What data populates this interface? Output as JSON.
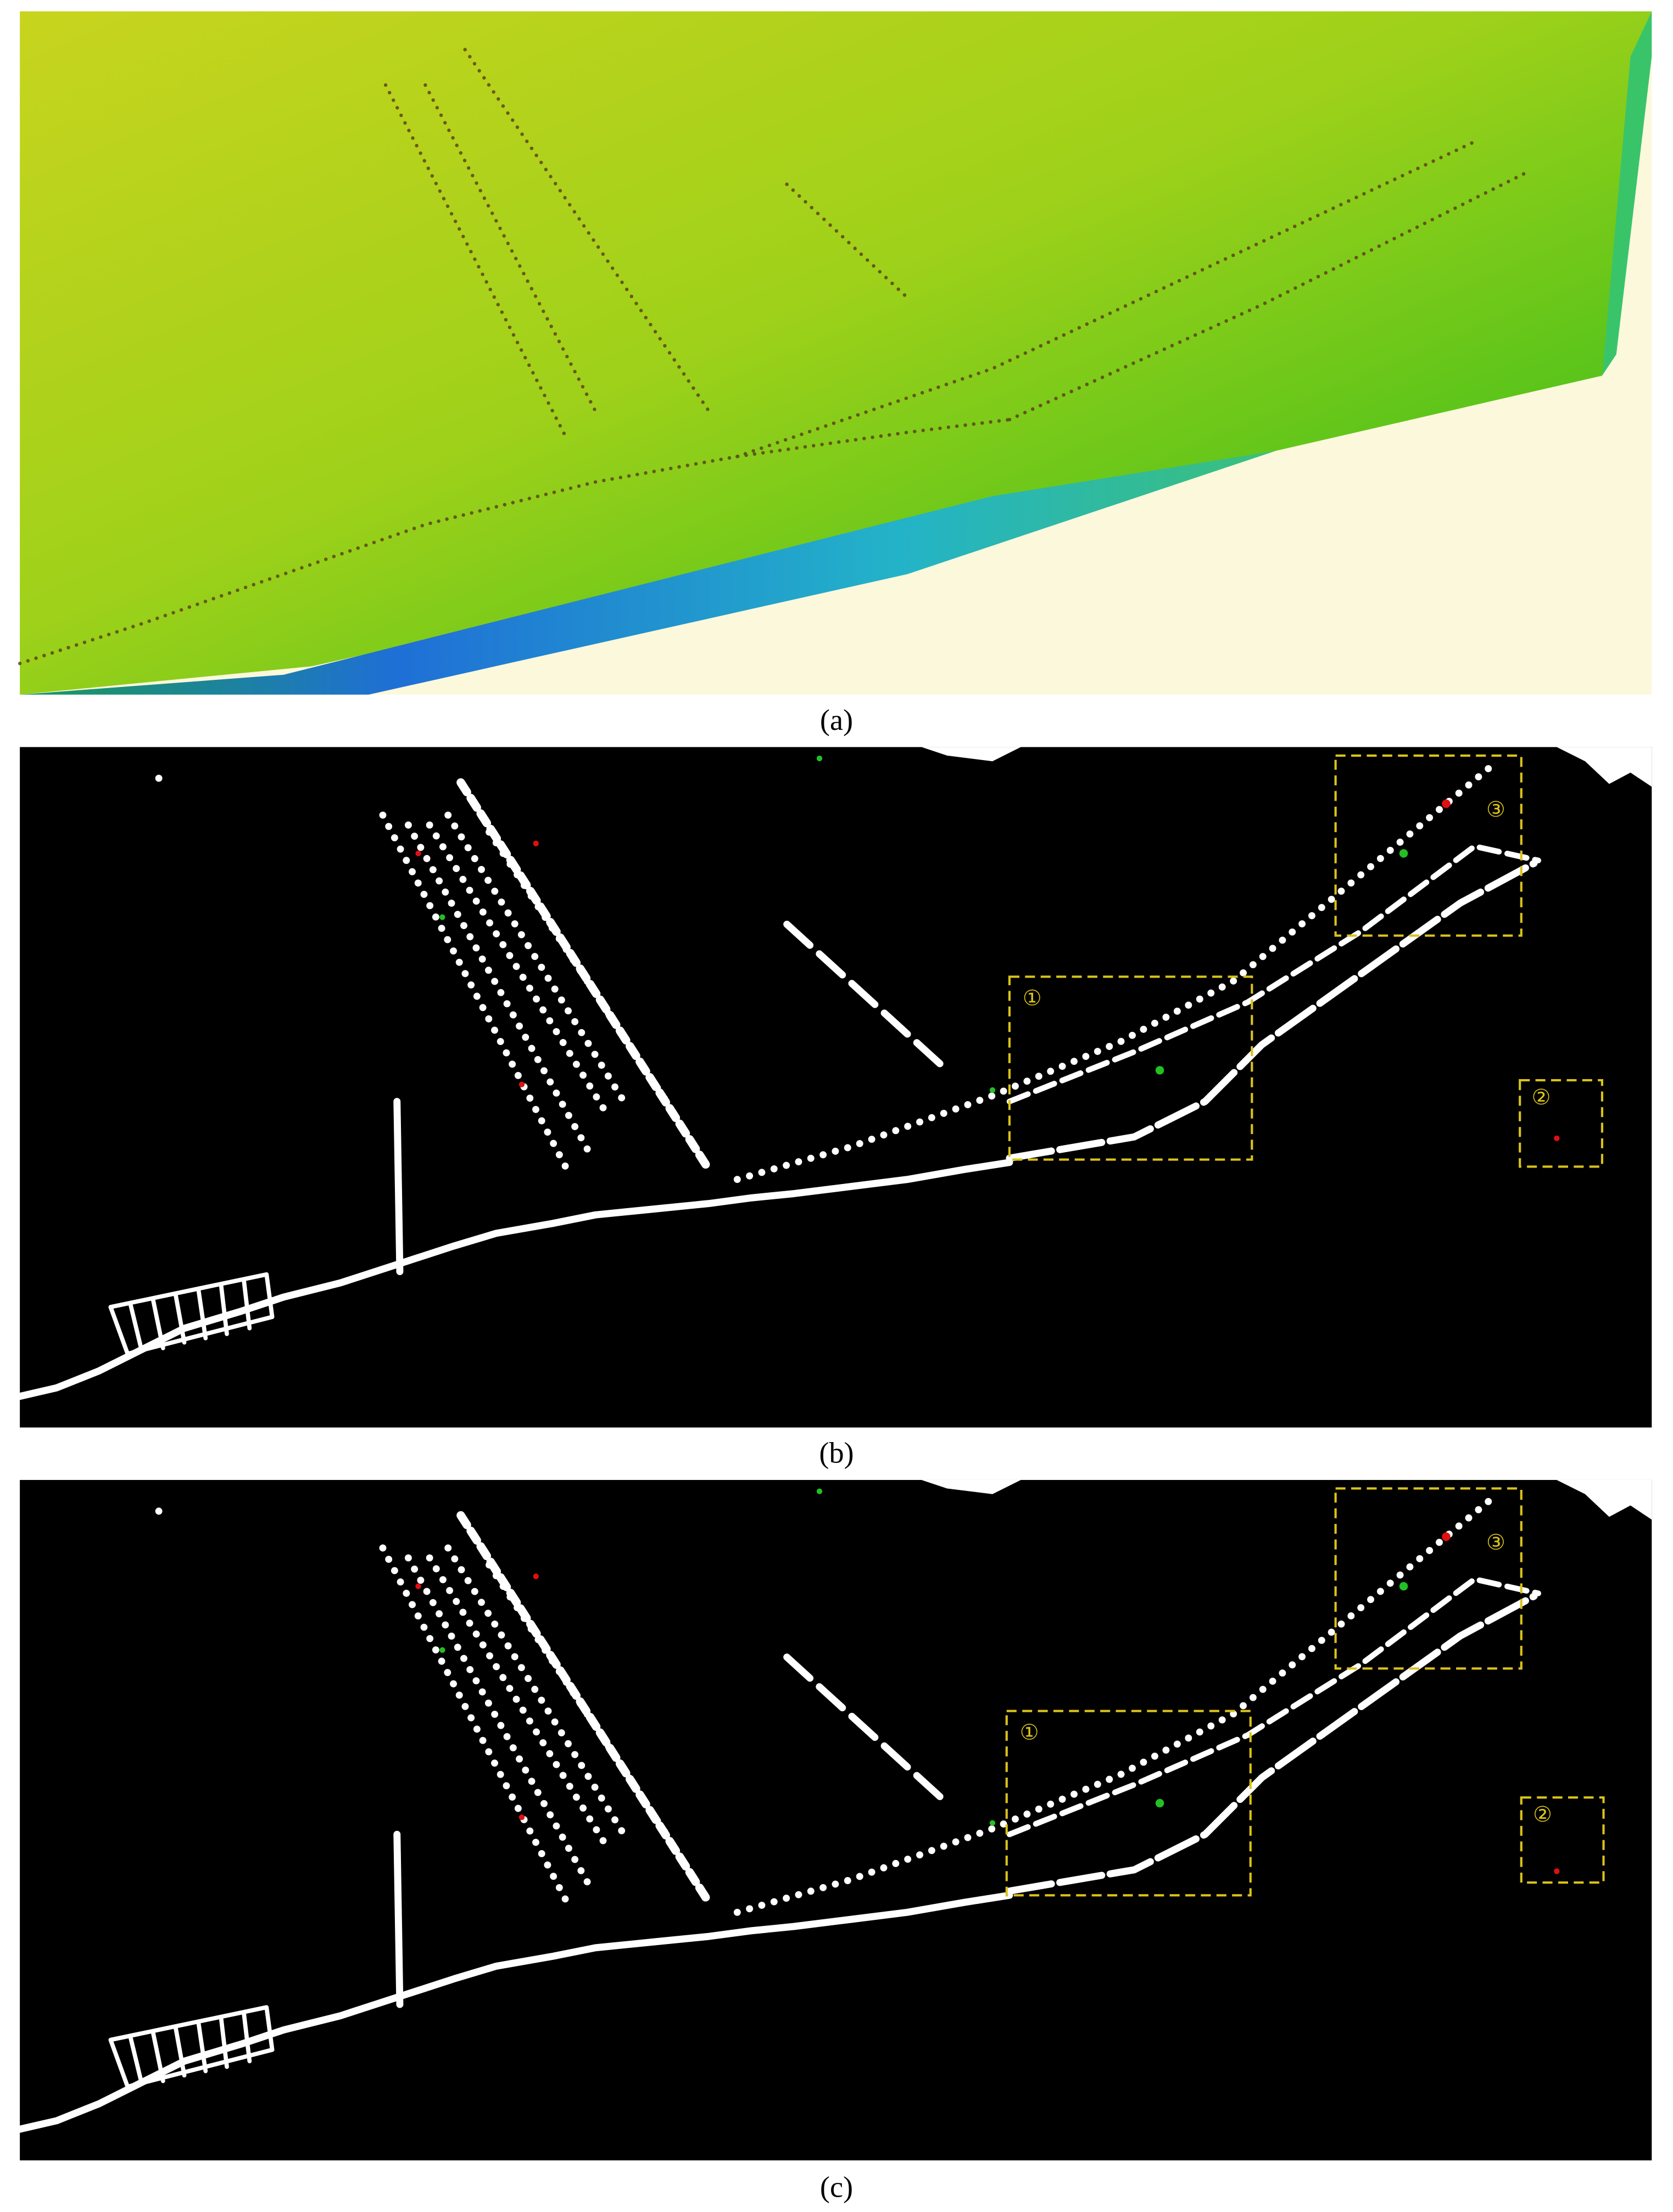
{
  "panels": [
    {
      "caption": "(a)"
    },
    {
      "caption": "(b)",
      "boxes": [
        {
          "label": "①"
        },
        {
          "label": "②"
        },
        {
          "label": "③"
        }
      ]
    },
    {
      "caption": "(c)",
      "boxes": [
        {
          "label": "①"
        },
        {
          "label": "②"
        },
        {
          "label": "③"
        }
      ]
    }
  ]
}
